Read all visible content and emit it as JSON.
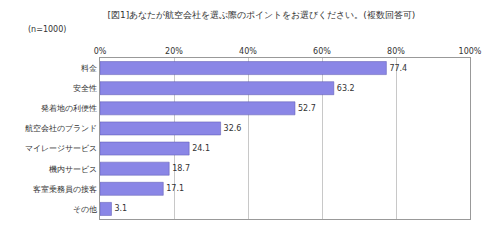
{
  "chart_data": {
    "type": "bar",
    "orientation": "horizontal",
    "title": "[図1]あなたが航空会社を選ぶ際のポイントをお選びください。(複数回答可)",
    "subtitle": "(n=1000)",
    "categories": [
      "料金",
      "安全性",
      "発着地の利便性",
      "航空会社のブランド",
      "マイレージサービス",
      "機内サービス",
      "客室乗務員の接客",
      "その他"
    ],
    "values": [
      77.4,
      63.2,
      52.7,
      32.6,
      24.1,
      18.7,
      17.1,
      3.1
    ],
    "color": "#8a86e6",
    "xlim": [
      0,
      100
    ],
    "xticks": [
      {
        "value": 0,
        "label": "0%"
      },
      {
        "value": 20,
        "label": "20%"
      },
      {
        "value": 40,
        "label": "40%"
      },
      {
        "value": 60,
        "label": "60%"
      },
      {
        "value": 80,
        "label": "80%"
      },
      {
        "value": 100,
        "label": "100%"
      }
    ],
    "grid": true,
    "data_labels": true
  }
}
